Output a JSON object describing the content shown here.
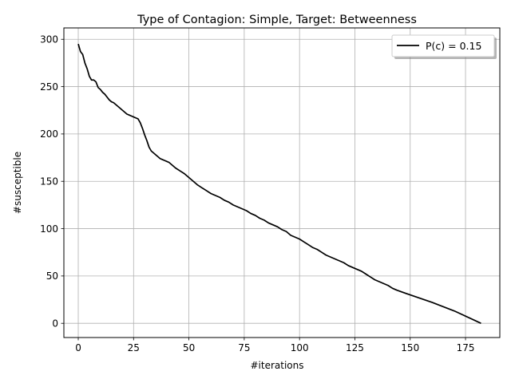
{
  "chart_data": {
    "type": "line",
    "title": "Type of Contagion: Simple, Target: Betweenness",
    "xlabel": "#iterations",
    "ylabel": "#susceptible",
    "xlim": [
      -6.5,
      190.5
    ],
    "ylim": [
      -15,
      312
    ],
    "xticks": [
      0,
      25,
      50,
      75,
      100,
      125,
      150,
      175
    ],
    "yticks": [
      0,
      50,
      100,
      150,
      200,
      250,
      300
    ],
    "grid": true,
    "legend_position": "top-right",
    "series": [
      {
        "name": "P(c) = 0.15",
        "color": "#000000",
        "x": [
          0,
          1,
          2,
          3,
          4,
          5,
          6,
          7,
          8,
          9,
          10,
          11,
          12,
          13,
          14,
          15,
          16,
          17,
          18,
          19,
          20,
          21,
          22,
          23,
          24,
          25,
          26,
          27,
          28,
          29,
          30,
          31,
          32,
          33,
          34,
          35,
          36,
          37,
          38,
          39,
          40,
          41,
          42,
          44,
          46,
          48,
          50,
          52,
          54,
          56,
          58,
          60,
          62,
          64,
          66,
          68,
          70,
          72,
          74,
          76,
          78,
          80,
          82,
          84,
          86,
          88,
          90,
          92,
          94,
          96,
          98,
          100,
          102,
          104,
          106,
          108,
          110,
          112,
          114,
          116,
          118,
          120,
          122,
          124,
          126,
          128,
          130,
          132,
          134,
          136,
          138,
          140,
          142,
          144,
          150,
          160,
          170,
          182
        ],
        "y": [
          295,
          287,
          284,
          275,
          269,
          261,
          257,
          257,
          255,
          249,
          247,
          244,
          242,
          239,
          236,
          234,
          233,
          231,
          229,
          227,
          225,
          223,
          221,
          220,
          219,
          218,
          217,
          216,
          212,
          206,
          199,
          193,
          186,
          182,
          180,
          178,
          176,
          174,
          173,
          172,
          171,
          170,
          168,
          164,
          161,
          158,
          154,
          150,
          146,
          143,
          140,
          137,
          135,
          133,
          130,
          128,
          125,
          123,
          121,
          119,
          116,
          114,
          111,
          109,
          106,
          104,
          102,
          99,
          97,
          93,
          91,
          89,
          86,
          83,
          80,
          78,
          75,
          72,
          70,
          68,
          66,
          64,
          61,
          59,
          57,
          55,
          52,
          49,
          46,
          44,
          42,
          40,
          37,
          35,
          30,
          22,
          13,
          0
        ]
      }
    ]
  }
}
